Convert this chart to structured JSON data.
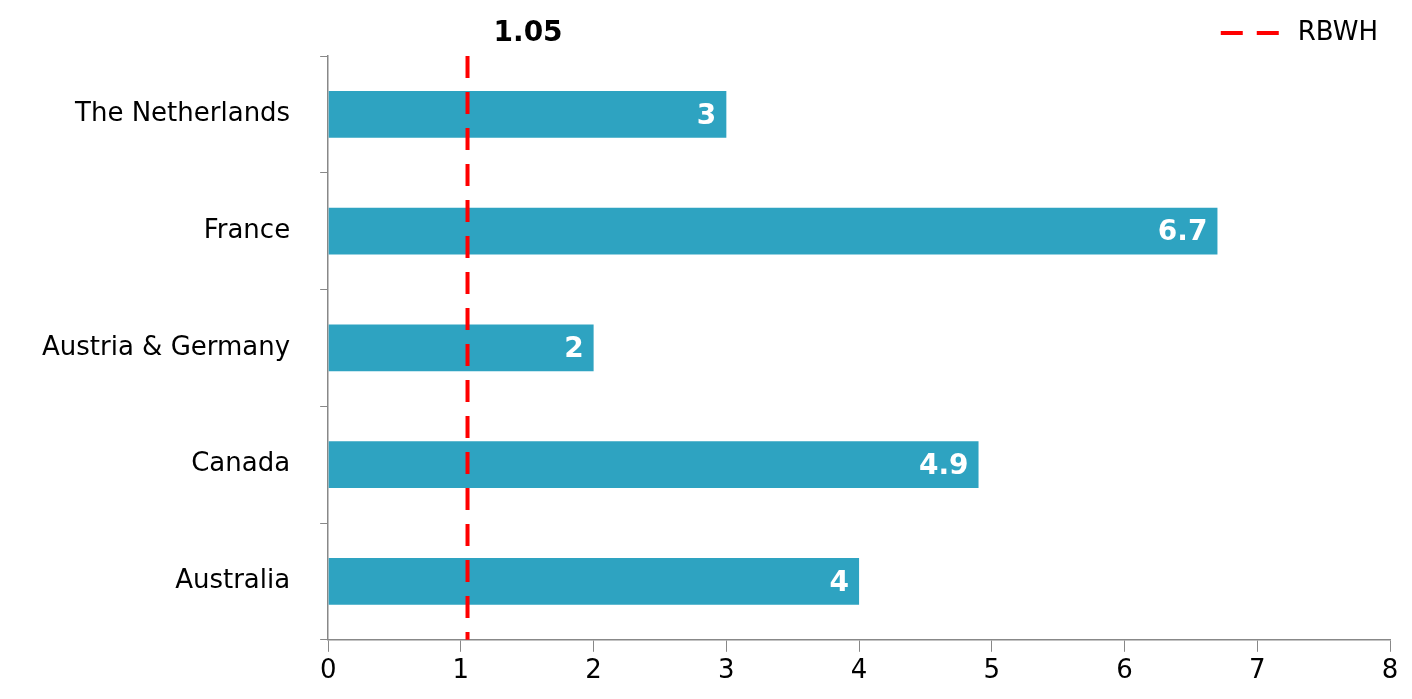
{
  "chart_data": {
    "type": "bar",
    "orientation": "horizontal",
    "categories": [
      "The Netherlands",
      "France",
      "Austria & Germany",
      "Canada",
      "Australia"
    ],
    "series": [
      {
        "color": "#2ea3c1",
        "values": [
          3,
          6.7,
          2,
          4.9,
          4
        ]
      }
    ],
    "ref_lines": [
      {
        "axis": "x",
        "value": 1.05,
        "label": "RBWH",
        "color": "#ff0000",
        "line_style": "dashed"
      }
    ],
    "annotations": [
      "1.05"
    ],
    "data_labels": true,
    "xlim": [
      0,
      8
    ],
    "xticks": [
      0,
      1,
      2,
      3,
      4,
      5,
      6,
      7,
      8
    ],
    "grid": false,
    "legend": "top right"
  }
}
